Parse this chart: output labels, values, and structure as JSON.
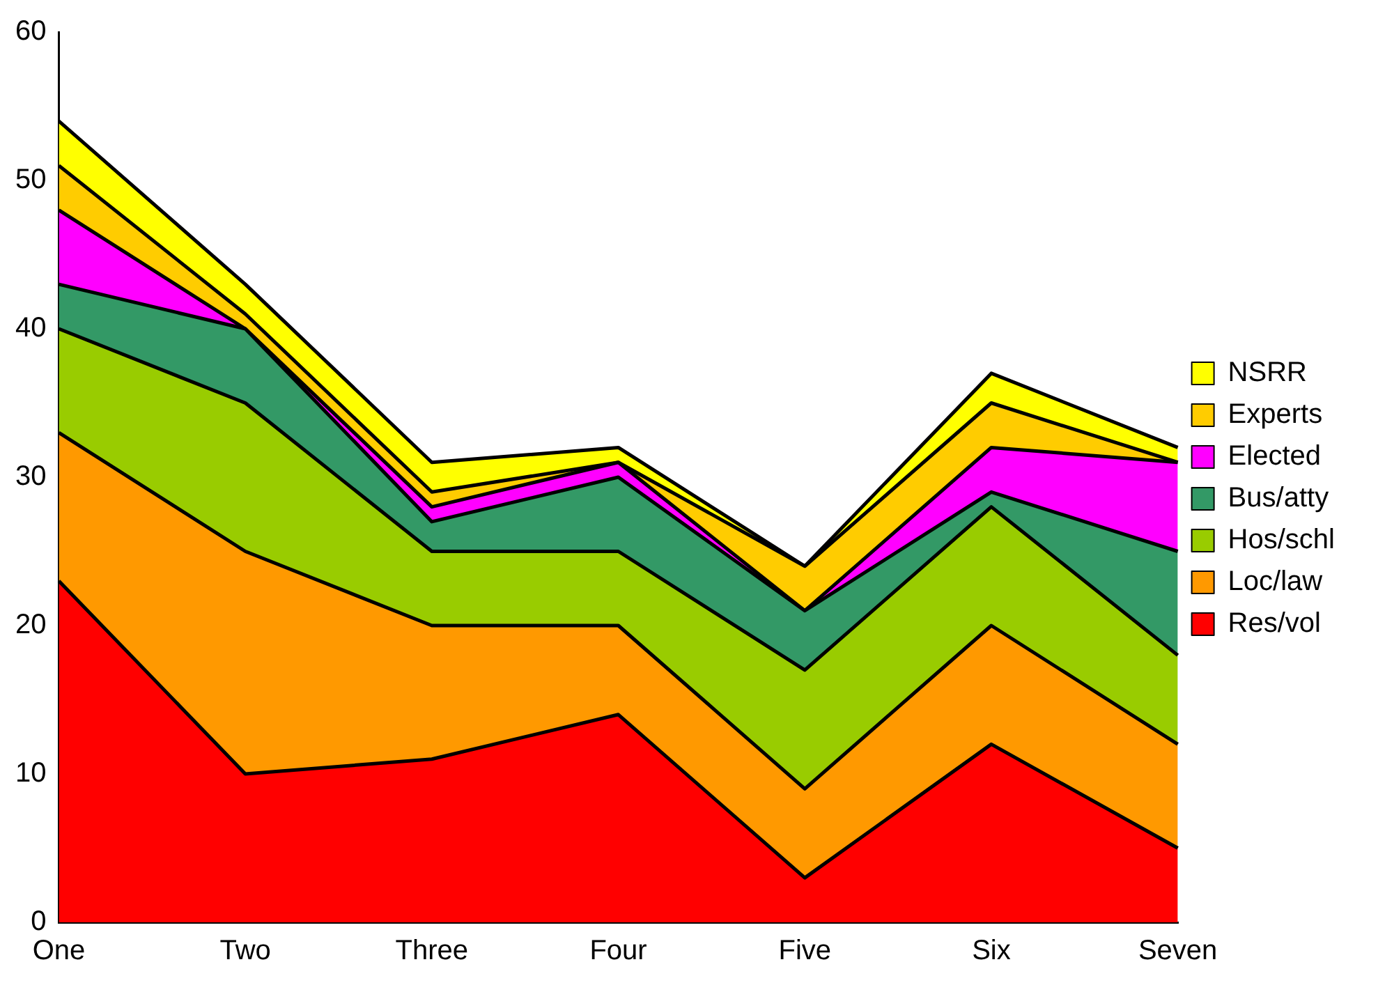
{
  "chart_data": {
    "type": "area",
    "stacked": true,
    "categories": [
      "One",
      "Two",
      "Three",
      "Four",
      "Five",
      "Six",
      "Seven"
    ],
    "series": [
      {
        "name": "Res/vol",
        "color": "#ff0000",
        "values": [
          23,
          10,
          11,
          14,
          3,
          12,
          5
        ]
      },
      {
        "name": "Loc/law",
        "color": "#ff9900",
        "values": [
          10,
          15,
          9,
          6,
          6,
          8,
          7
        ]
      },
      {
        "name": "Hos/schl",
        "color": "#99cc00",
        "values": [
          7,
          10,
          5,
          5,
          8,
          8,
          6
        ]
      },
      {
        "name": "Bus/atty",
        "color": "#339966",
        "values": [
          3,
          5,
          2,
          5,
          4,
          1,
          7
        ]
      },
      {
        "name": "Elected",
        "color": "#ff00ff",
        "values": [
          5,
          0,
          1,
          1,
          0,
          3,
          6
        ]
      },
      {
        "name": "Experts",
        "color": "#ffcc00",
        "values": [
          3,
          1,
          1,
          0,
          3,
          3,
          0
        ]
      },
      {
        "name": "NSRR",
        "color": "#ffff00",
        "values": [
          3,
          2,
          2,
          1,
          0,
          2,
          1
        ]
      }
    ],
    "ylim": [
      0,
      60
    ],
    "yticks": [
      0,
      10,
      20,
      30,
      40,
      50,
      60
    ],
    "grid": false,
    "legend": "right"
  }
}
